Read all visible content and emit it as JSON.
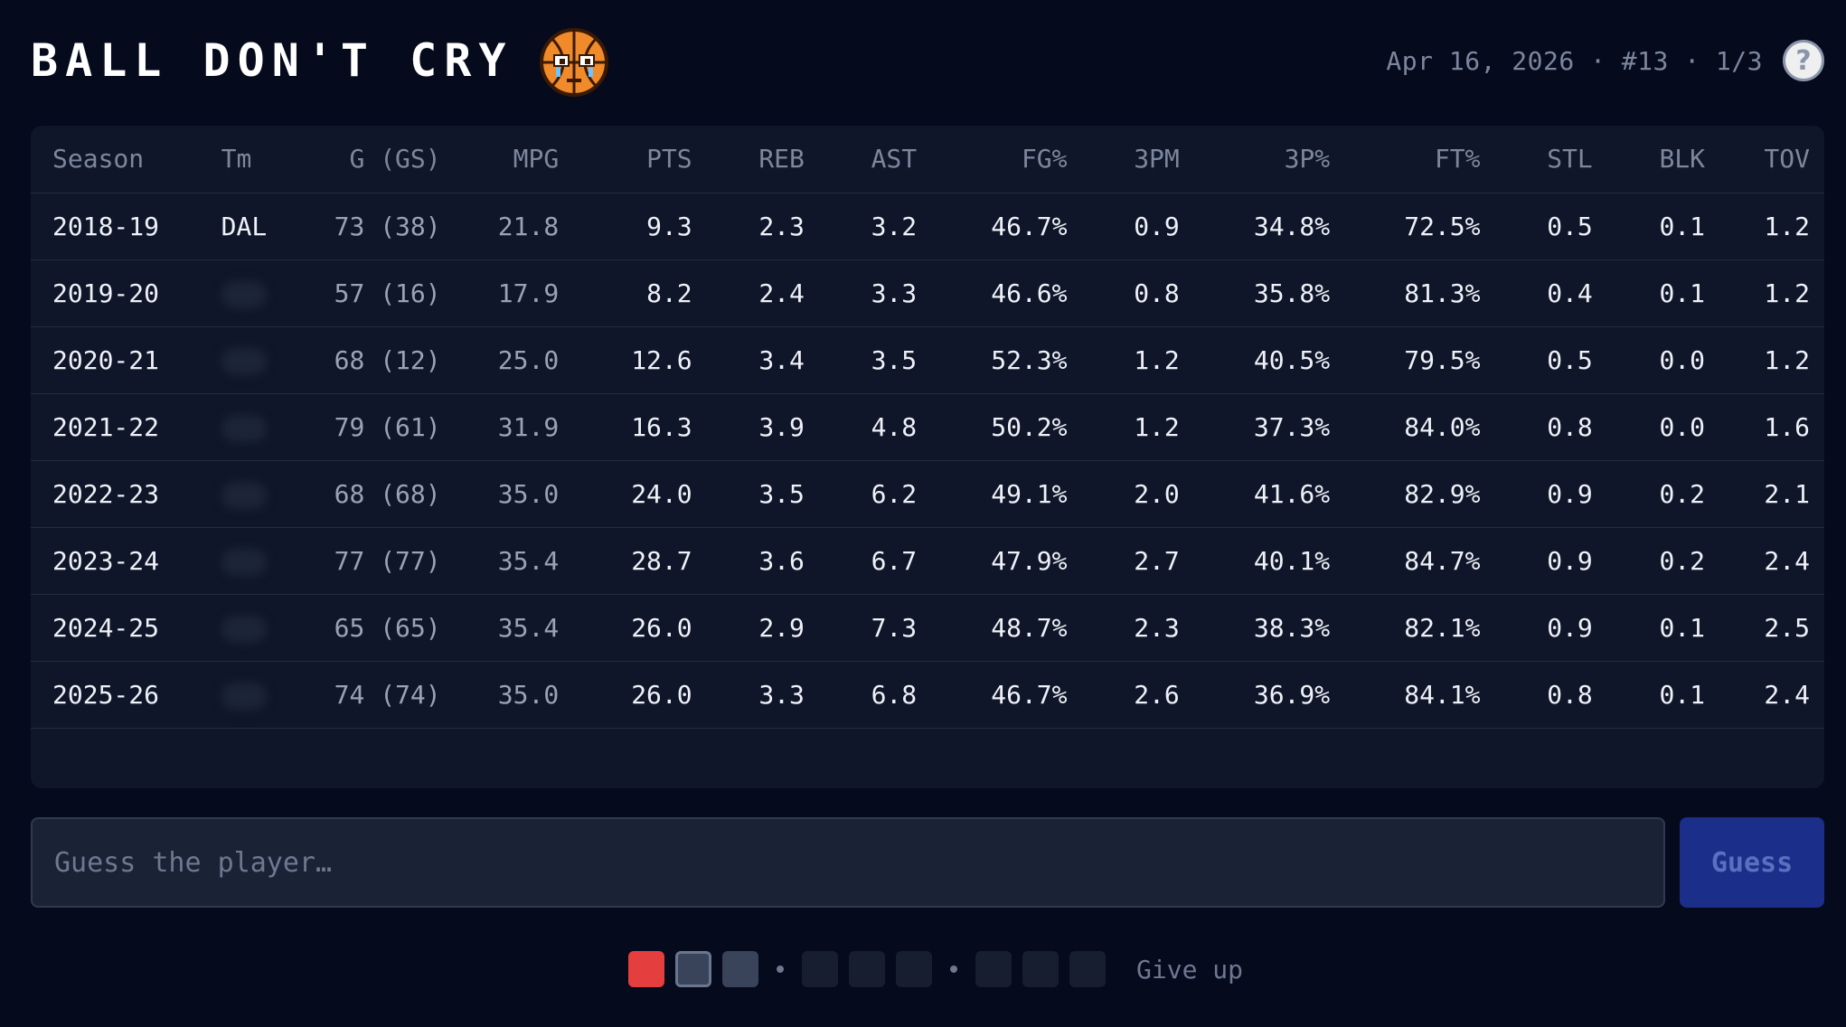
{
  "header": {
    "title": "BALL DON'T CRY",
    "meta": "Apr 16, 2026 · #13 · 1/3",
    "help_label": "?"
  },
  "table": {
    "columns": [
      "Season",
      "Tm",
      "G (GS)",
      "MPG",
      "PTS",
      "REB",
      "AST",
      "FG%",
      "3PM",
      "3P%",
      "FT%",
      "STL",
      "BLK",
      "TOV"
    ],
    "rows": [
      {
        "season": "2018-19",
        "team": "DAL",
        "team_hidden": false,
        "g": "73 (38)",
        "mpg": "21.8",
        "pts": "9.3",
        "reb": "2.3",
        "ast": "3.2",
        "fg": "46.7%",
        "tpm": "0.9",
        "tpp": "34.8%",
        "ft": "72.5%",
        "stl": "0.5",
        "blk": "0.1",
        "tov": "1.2"
      },
      {
        "season": "2019-20",
        "team": "",
        "team_hidden": true,
        "g": "57 (16)",
        "mpg": "17.9",
        "pts": "8.2",
        "reb": "2.4",
        "ast": "3.3",
        "fg": "46.6%",
        "tpm": "0.8",
        "tpp": "35.8%",
        "ft": "81.3%",
        "stl": "0.4",
        "blk": "0.1",
        "tov": "1.2"
      },
      {
        "season": "2020-21",
        "team": "",
        "team_hidden": true,
        "g": "68 (12)",
        "mpg": "25.0",
        "pts": "12.6",
        "reb": "3.4",
        "ast": "3.5",
        "fg": "52.3%",
        "tpm": "1.2",
        "tpp": "40.5%",
        "ft": "79.5%",
        "stl": "0.5",
        "blk": "0.0",
        "tov": "1.2"
      },
      {
        "season": "2021-22",
        "team": "",
        "team_hidden": true,
        "g": "79 (61)",
        "mpg": "31.9",
        "pts": "16.3",
        "reb": "3.9",
        "ast": "4.8",
        "fg": "50.2%",
        "tpm": "1.2",
        "tpp": "37.3%",
        "ft": "84.0%",
        "stl": "0.8",
        "blk": "0.0",
        "tov": "1.6"
      },
      {
        "season": "2022-23",
        "team": "",
        "team_hidden": true,
        "g": "68 (68)",
        "mpg": "35.0",
        "pts": "24.0",
        "reb": "3.5",
        "ast": "6.2",
        "fg": "49.1%",
        "tpm": "2.0",
        "tpp": "41.6%",
        "ft": "82.9%",
        "stl": "0.9",
        "blk": "0.2",
        "tov": "2.1"
      },
      {
        "season": "2023-24",
        "team": "",
        "team_hidden": true,
        "g": "77 (77)",
        "mpg": "35.4",
        "pts": "28.7",
        "reb": "3.6",
        "ast": "6.7",
        "fg": "47.9%",
        "tpm": "2.7",
        "tpp": "40.1%",
        "ft": "84.7%",
        "stl": "0.9",
        "blk": "0.2",
        "tov": "2.4"
      },
      {
        "season": "2024-25",
        "team": "",
        "team_hidden": true,
        "g": "65 (65)",
        "mpg": "35.4",
        "pts": "26.0",
        "reb": "2.9",
        "ast": "7.3",
        "fg": "48.7%",
        "tpm": "2.3",
        "tpp": "38.3%",
        "ft": "82.1%",
        "stl": "0.9",
        "blk": "0.1",
        "tov": "2.5"
      },
      {
        "season": "2025-26",
        "team": "",
        "team_hidden": true,
        "g": "74 (74)",
        "mpg": "35.0",
        "pts": "26.0",
        "reb": "3.3",
        "ast": "6.8",
        "fg": "46.7%",
        "tpm": "2.6",
        "tpp": "36.9%",
        "ft": "84.1%",
        "stl": "0.8",
        "blk": "0.1",
        "tov": "2.4"
      }
    ]
  },
  "guess": {
    "placeholder": "Guess the player…",
    "button_label": "Guess"
  },
  "attempts": {
    "groups": [
      [
        "fail",
        "current",
        "next"
      ],
      [
        "empty",
        "empty",
        "empty"
      ],
      [
        "empty",
        "empty",
        "empty"
      ]
    ],
    "give_up_label": "Give up"
  },
  "colors": {
    "background": "#050a1c",
    "panel": "#0f1629",
    "fail": "#e53e3e",
    "button": "#1a2e8a",
    "mascot": "#f08a2a"
  },
  "icons": {
    "mascot": "crying-basketball-icon",
    "help": "help-icon"
  }
}
